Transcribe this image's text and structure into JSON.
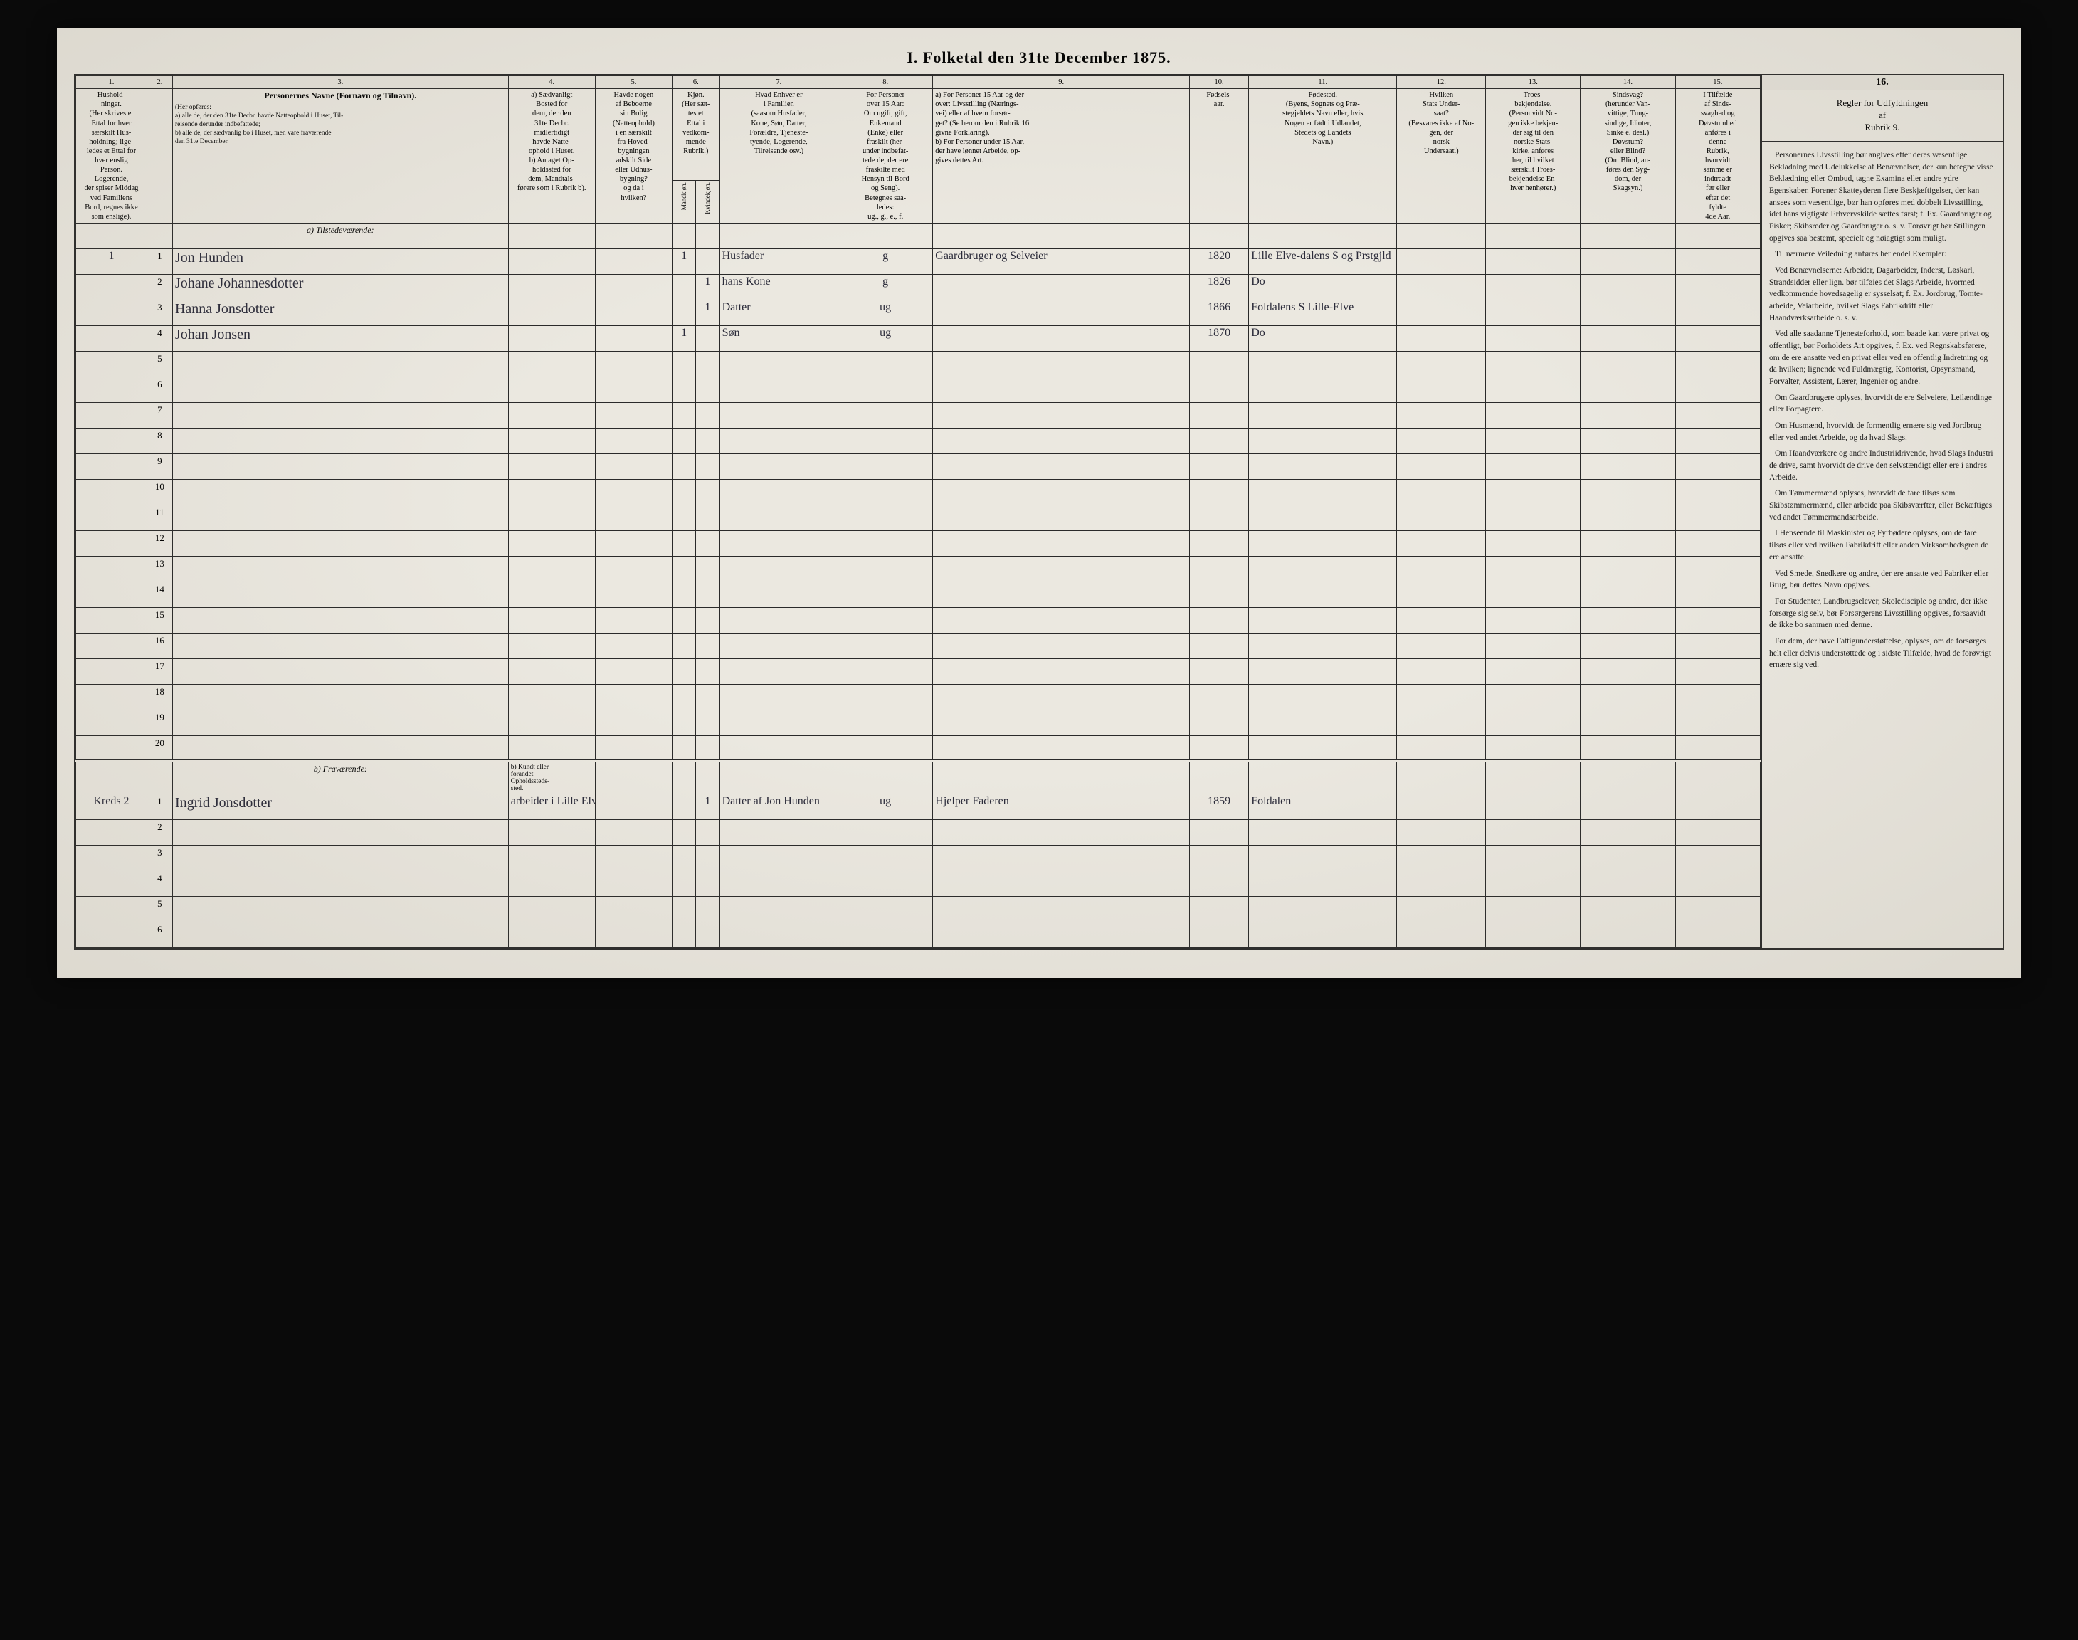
{
  "title": "I.  Folketal   den 31te December 1875.",
  "colnums": [
    "1.",
    "2.",
    "3.",
    "4.",
    "5.",
    "6.",
    "7.",
    "8.",
    "9.",
    "10.",
    "11.",
    "12.",
    "13.",
    "14.",
    "15."
  ],
  "headers": {
    "c1": "Hushold-\nninger.\n(Her skrives et\nEttal for hver\nsærskilt Hus-\nholdning; lige-\nledes et Ettal for\nhver enslig\nPerson.\nLogerende,\nder spiser Middag\nved Familiens\nBord, regnes ikke\nsom enslige).",
    "c2_pre": "Personernes Navne (Fornavn og Tilnavn).",
    "c2_note": "(Her opføres:\na)  alle de, der den 31te Decbr. havde Natteophold i Huset, Til-\n    reisende derunder indbefattede;\nb)  alle de, der sædvanlig bo i Huset, men vare fraværende\n    den 31te December.",
    "c4": "a) Sædvanligt\nBosted for\ndem, der den\n31te Decbr.\nmidlertidigt\nhavde Natte-\nophold i Huset.\nb) Antaget Op-\nholdssted for\ndem, Mandtals-\nførere som i Rubrik b).",
    "c5": "Havde nogen\naf Beboerne\nsin Bolig\n(Natteophold)\ni en særskilt\nfra Hoved-\nbygningen\nadskilt Side\neller Udhus-\nbygning?\nog da i\nhvilken?",
    "c6": "Kjøn.\n(Her sæt-\ntes et\nEttal i\nvedkom-\nmende\nRubrik.)",
    "c6a": "Mandkjøn.",
    "c6b": "Kvindekjøn.",
    "c7": "Hvad Enhver er\ni Familien\n(saasom Husfader,\nKone, Søn, Datter,\nForældre, Tjeneste-\ntyende, Logerende,\nTilreisende osv.)",
    "c8": "For Personer\nover 15 Aar:\nOm ugift, gift,\nEnkemand\n(Enke) eller\nfraskilt (her-\nunder indbefat-\ntede de, der ere\nfraskilte med\nHensyn til Bord\nog Seng).\nBetegnes saa-\nledes:\nug., g., e., f.",
    "c9": "a)  For Personer 15 Aar og der-\nover: Livsstilling (Nærings-\nvei) eller af hvem forsør-\nget? (Se herom den i Rubrik 16\ngivne Forklaring).\nb)  For Personer under 15 Aar,\nder have lønnet Arbeide, op-\ngives dettes Art.",
    "c10": "Fødsels-\naar.",
    "c11": "Fødested.\n(Byens, Sognets og Præ-\nstegjeldets Navn eller, hvis\nNogen er født i Udlandet,\nStedets og Landets\nNavn.)",
    "c12": "Hvilken\nStats Under-\nsaat?\n(Besvares ikke af No-\ngen, der\nnorsk\nUndersaat.)",
    "c13": "Troes-\nbekjendelse.\n(Personvidt No-\ngen ikke bekjen-\nder sig til den\nnorske Stats-\nkirke, anføres\nher, til hvilket\nsærskilt Troes-\nbekjendelse En-\nhver henhører.)",
    "c14": "Sindsvag?\n(herunder Van-\nvittige, Tung-\nsindige, Idioter,\nSinke e. desl.)\nDøvstum?\neller Blind?\n(Om Blind, an-\nføres den Syg-\ndom, der\nSkagsyn.)",
    "c15": "I Tilfælde\naf Sinds-\nsvaghed og\nDøvstumhed\nanføres i\ndenne\nRubrik,\nhvorvidt\nsamme er\nindtraadt\nfør eller\nefter det\nfyldte\n4de Aar."
  },
  "section_a": "a) Tilstedeværende:",
  "section_b": "b) Fraværende:",
  "section_b_c4": "b) Kundt eller\nforandet\nOpholdssteds-\nsted.",
  "rows_a": [
    {
      "hh": "1",
      "n": "1",
      "name": "Jon Hunden",
      "c4": "",
      "c5": "",
      "mk": "1",
      "kk": "",
      "fam": "Husfader",
      "civ": "g",
      "occ": "Gaardbruger og Selveier",
      "born": "1820",
      "place": "Lille Elve-dalens S og Prstgjld"
    },
    {
      "hh": "",
      "n": "2",
      "name": "Johane Johannesdotter",
      "c4": "",
      "c5": "",
      "mk": "",
      "kk": "1",
      "fam": "hans Kone",
      "civ": "g",
      "occ": "",
      "born": "1826",
      "place": "Do"
    },
    {
      "hh": "",
      "n": "3",
      "name": "Hanna Jonsdotter",
      "c4": "",
      "c5": "",
      "mk": "",
      "kk": "1",
      "fam": "Datter",
      "civ": "ug",
      "occ": "",
      "born": "1866",
      "place": "Foldalens S Lille-Elve"
    },
    {
      "hh": "",
      "n": "4",
      "name": "Johan Jonsen",
      "c4": "",
      "c5": "",
      "mk": "1",
      "kk": "",
      "fam": "Søn",
      "civ": "ug",
      "occ": "",
      "born": "1870",
      "place": "Do"
    }
  ],
  "blank_a_from": 5,
  "blank_a_to": 20,
  "rows_b": [
    {
      "hh": "Kreds 2",
      "n": "1",
      "name": "Ingrid Jonsdotter",
      "c4": "arbeider i Lille Elve Sogn",
      "c5": "",
      "mk": "",
      "kk": "1",
      "fam": "Datter af Jon Hunden",
      "civ": "ug",
      "occ": "Hjelper Faderen",
      "born": "1859",
      "place": "Foldalen"
    }
  ],
  "blank_b_count": 5,
  "side": {
    "col": "16.",
    "title": "Regler for Udfyldningen\naf\nRubrik 9.",
    "paras": [
      "Personernes Livsstilling bør angives efter deres væsentlige Bekladning med Udelukkelse af Benævnelser, der kun betegne visse Beklædning eller Ombud, tagne Examina eller andre ydre Egenskaber. Forener Skatteyderen flere Beskjæftigelser, der kan ansees som væsentlige, bør han opføres med dobbelt Livsstilling, idet hans vigtigste Erhvervskilde sættes først; f. Ex. Gaardbruger og Fisker; Skibsreder og Gaardbruger o. s. v. Forøvrigt bør Stillingen opgives saa bestemt, specielt og nøiagtigt som muligt.",
      "Til nærmere Veiledning anføres her endel Exempler:",
      "Ved Benævnelserne: Arbeider, Dagarbeider, Inderst, Løskarl, Strandsidder eller lign. bør tilføies det Slags Arbeide, hvormed vedkommende hovedsagelig er sysselsat; f. Ex. Jordbrug, Tomte-arbeide, Veiarbeide, hvilket Slags Fabrikdrift eller Haandværksarbeide o. s. v.",
      "Ved alle saadanne Tjenesteforhold, som baade kan være privat og offentligt, bør Forholdets Art opgives, f. Ex. ved Regnskabsførere, om de ere ansatte ved en privat eller ved en offentlig Indretning og da hvilken; lignende ved Fuldmægtig, Kontorist, Opsynsmand, Forvalter, Assistent, Lærer, Ingeniør og andre.",
      "Om Gaardbrugere oplyses, hvorvidt de ere Selveiere, Leilændinge eller Forpagtere.",
      "Om Husmænd, hvorvidt de formentlig ernære sig ved Jordbrug eller ved andet Arbeide, og da hvad Slags.",
      "Om Haandværkere og andre Industriidrivende, hvad Slags Industri de drive, samt hvorvidt de drive den selvstændigt eller ere i andres Arbeide.",
      "Om Tømmermænd oplyses, hvorvidt de fare tilsøs som Skibstømmermænd, eller arbeide paa Skibsværfter, eller Bekæftiges ved andet Tømmermandsarbeide.",
      "I Henseende til Maskinister og Fyrbødere oplyses, om de fare tilsøs eller ved hvilken Fabrikdrift eller anden Virksomhedsgren de ere ansatte.",
      "Ved Smede, Snedkere og andre, der ere ansatte ved Fabriker eller Brug, bør dettes Navn opgives.",
      "For Studenter, Landbrugselever, Skoledisciple og andre, der ikke forsørge sig selv, bør Forsørgerens Livsstilling opgives, forsaavidt de ikke bo sammen med denne.",
      "For dem, der have Fattigunderstøttelse, oplyses, om de forsørges helt eller delvis understøttede og i sidste Tilfælde, hvad de forøvrigt ernære sig ved."
    ]
  },
  "colwidths": {
    "c1": 72,
    "c2": 26,
    "c3": 340,
    "c4": 88,
    "c5": 78,
    "c6a": 24,
    "c6b": 24,
    "c7": 120,
    "c8": 96,
    "c9": 260,
    "c10": 60,
    "c11": 150,
    "c12": 90,
    "c13": 96,
    "c14": 96,
    "c15": 86
  }
}
